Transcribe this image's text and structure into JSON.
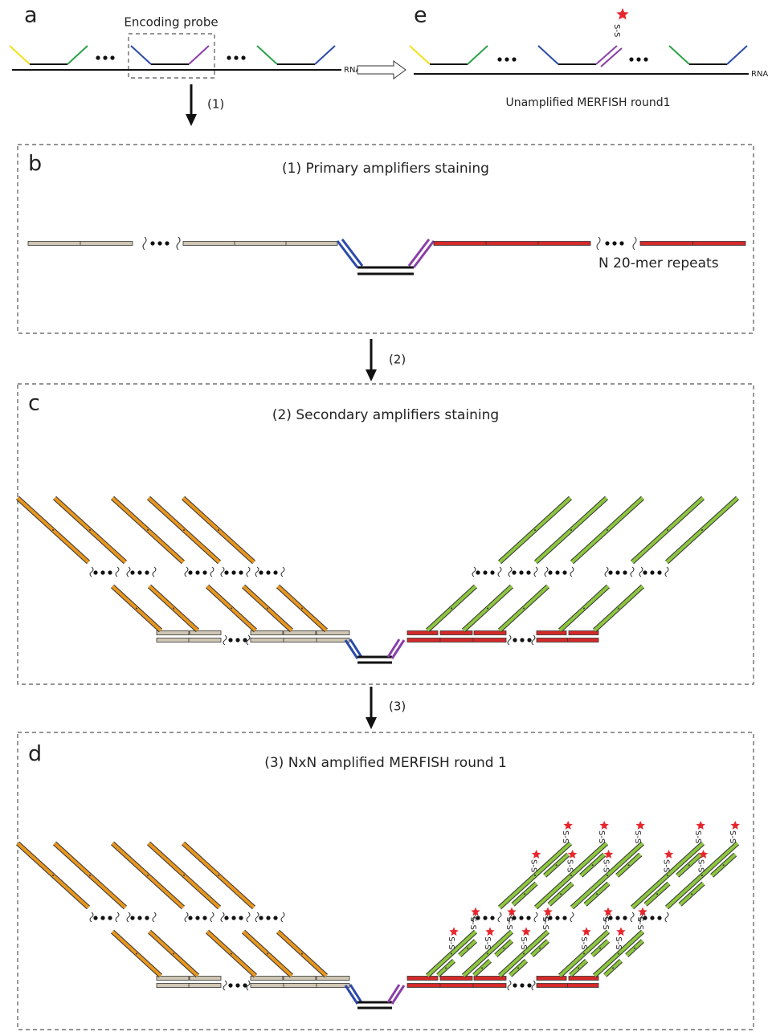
{
  "panel_a": {
    "letter": "a",
    "probe_label": "Encoding probe",
    "rna_label": "RNA",
    "arrow_label": "(1)"
  },
  "panel_e": {
    "letter": "e",
    "rna_label": "RNA",
    "linker": "S-S",
    "caption": "Unamplified MERFISH round1"
  },
  "panel_b": {
    "letter": "b",
    "title": "(1) Primary amplifiers staining",
    "repeat_label": "N 20-mer repeats"
  },
  "arrow_2_label": "(2)",
  "panel_c": {
    "letter": "c",
    "title": "(2) Secondary amplifiers staining"
  },
  "arrow_3_label": "(3)",
  "panel_d": {
    "letter": "d",
    "title": "(3) NxN amplified MERFISH round 1",
    "linkers": [
      "S-S",
      "S-S",
      "S-S",
      "S-S",
      "S-S",
      "S-S",
      "S-S",
      "S-S",
      "S-S",
      "S-S",
      "S-S",
      "S-S",
      "S-S",
      "S-S",
      "S-S",
      "S-S",
      "S-S",
      "S-S",
      "S-S",
      "S-S"
    ]
  }
}
